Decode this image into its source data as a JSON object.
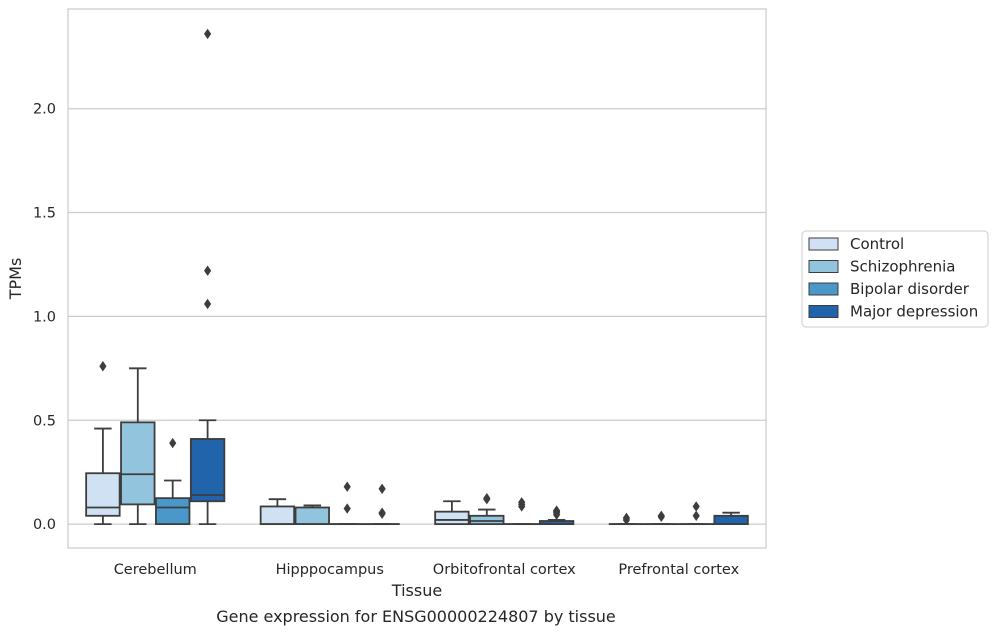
{
  "chart_data": {
    "type": "box",
    "title": "",
    "caption": "Gene expression for ENSG00000224807 by tissue",
    "xlabel": "Tissue",
    "ylabel": "TPMs",
    "ylim": [
      -0.115,
      2.48
    ],
    "yticks": [
      0.0,
      0.5,
      1.0,
      1.5,
      2.0
    ],
    "ytick_labels": [
      "0.0",
      "0.5",
      "1.0",
      "1.5",
      "2.0"
    ],
    "grid": "horizontal",
    "legend_position": "right",
    "categories": [
      "Cerebellum",
      "Hipppocampus",
      "Orbitofrontal cortex",
      "Prefrontal cortex"
    ],
    "series": [
      {
        "name": "Control",
        "color": "#cfe1f2",
        "boxes": [
          {
            "q1": 0.04,
            "median": 0.08,
            "q3": 0.245,
            "whisker_low": 0.0,
            "whisker_high": 0.46,
            "outliers": [
              0.76
            ]
          },
          {
            "q1": 0.0,
            "median": 0.0,
            "q3": 0.085,
            "whisker_low": 0.0,
            "whisker_high": 0.12,
            "outliers": []
          },
          {
            "q1": 0.0,
            "median": 0.02,
            "q3": 0.06,
            "whisker_low": 0.0,
            "whisker_high": 0.11,
            "outliers": []
          },
          {
            "q1": 0.0,
            "median": 0.0,
            "q3": 0.0,
            "whisker_low": 0.0,
            "whisker_high": 0.0,
            "outliers": [
              0.03,
              0.02
            ]
          }
        ]
      },
      {
        "name": "Schizophrenia",
        "color": "#93c4de",
        "boxes": [
          {
            "q1": 0.095,
            "median": 0.24,
            "q3": 0.49,
            "whisker_low": 0.0,
            "whisker_high": 0.75,
            "outliers": []
          },
          {
            "q1": 0.0,
            "median": 0.0,
            "q3": 0.08,
            "whisker_low": 0.0,
            "whisker_high": 0.09,
            "outliers": []
          },
          {
            "q1": 0.0,
            "median": 0.015,
            "q3": 0.04,
            "whisker_low": 0.0,
            "whisker_high": 0.07,
            "outliers": [
              0.12,
              0.125
            ]
          },
          {
            "q1": 0.0,
            "median": 0.0,
            "q3": 0.0,
            "whisker_low": 0.0,
            "whisker_high": 0.0,
            "outliers": [
              0.04,
              0.035
            ]
          }
        ]
      },
      {
        "name": "Bipolar disorder",
        "color": "#4a98c9",
        "boxes": [
          {
            "q1": 0.0,
            "median": 0.08,
            "q3": 0.125,
            "whisker_low": 0.0,
            "whisker_high": 0.21,
            "outliers": [
              0.39
            ]
          },
          {
            "q1": 0.0,
            "median": 0.0,
            "q3": 0.0,
            "whisker_low": 0.0,
            "whisker_high": 0.0,
            "outliers": [
              0.18,
              0.075
            ]
          },
          {
            "q1": 0.0,
            "median": 0.0,
            "q3": 0.0,
            "whisker_low": 0.0,
            "whisker_high": 0.0,
            "outliers": [
              0.105,
              0.085,
              0.095
            ]
          },
          {
            "q1": 0.0,
            "median": 0.0,
            "q3": 0.0,
            "whisker_low": 0.0,
            "whisker_high": 0.0,
            "outliers": [
              0.085,
              0.04
            ]
          }
        ]
      },
      {
        "name": "Major depression",
        "color": "#2164ab",
        "boxes": [
          {
            "q1": 0.11,
            "median": 0.14,
            "q3": 0.41,
            "whisker_low": 0.0,
            "whisker_high": 0.5,
            "outliers": [
              1.22,
              1.06,
              2.36
            ]
          },
          {
            "q1": 0.0,
            "median": 0.0,
            "q3": 0.0,
            "whisker_low": 0.0,
            "whisker_high": 0.0,
            "outliers": [
              0.17,
              0.05,
              0.055
            ]
          },
          {
            "q1": 0.0,
            "median": 0.0,
            "q3": 0.015,
            "whisker_low": 0.0,
            "whisker_high": 0.02,
            "outliers": [
              0.065,
              0.055,
              0.045,
              0.06
            ]
          },
          {
            "q1": 0.0,
            "median": 0.0,
            "q3": 0.04,
            "whisker_low": 0.0,
            "whisker_high": 0.055,
            "outliers": []
          }
        ]
      }
    ]
  }
}
